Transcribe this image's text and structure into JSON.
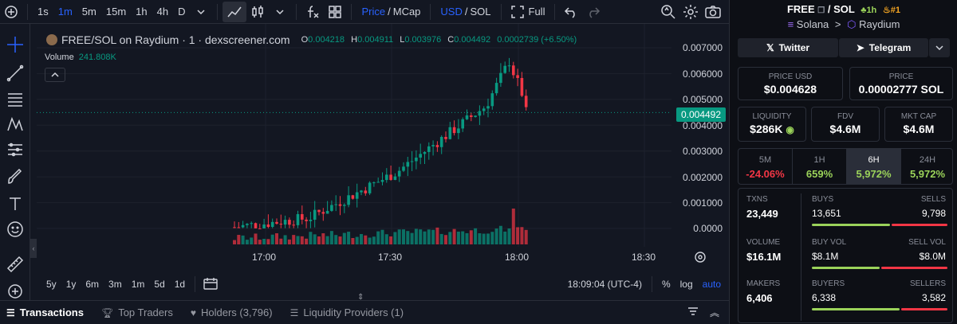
{
  "toolbar": {
    "add_icon": "plus-circle-icon",
    "intervals": [
      "1s",
      "1m",
      "5m",
      "15m",
      "1h",
      "4h",
      "D"
    ],
    "active_interval": "1m",
    "price_label": "Price",
    "mcap_label": "MCap",
    "usd_label": "USD",
    "sol_label": "SOL",
    "full_label": "Full",
    "slash": "/"
  },
  "chart": {
    "title": "FREE/SOL on Raydium · 1 · dexscreener.com",
    "ohlc": {
      "o_label": "O",
      "o": "0.004218",
      "h_label": "H",
      "h": "0.004911",
      "l_label": "L",
      "l": "0.003976",
      "c_label": "C",
      "c": "0.004492",
      "change": "0.0002739 (+6.50%)"
    },
    "volume_label": "Volume",
    "volume_value": "241.808K",
    "current_price_tag": "0.004492",
    "price_axis": [
      "0.007000",
      "0.006000",
      "0.005000",
      "0.004000",
      "0.003000",
      "0.002000",
      "0.001000",
      "0.0000"
    ],
    "time_axis": [
      "17:00",
      "17:30",
      "18:00",
      "18:30"
    ]
  },
  "bottom_toolbar": {
    "ranges": [
      "5y",
      "1y",
      "6m",
      "3m",
      "1m",
      "5d",
      "1d"
    ],
    "clock": "18:09:04 (UTC-4)",
    "percent": "%",
    "log": "log",
    "auto": "auto"
  },
  "tabs": [
    {
      "label": "Transactions",
      "icon": "list-icon"
    },
    {
      "label": "Top Traders",
      "icon": "trophy-icon"
    },
    {
      "label": "Holders (3,796)",
      "icon": "heart-icon"
    },
    {
      "label": "Liquidity Providers (1)",
      "icon": "list-icon"
    }
  ],
  "panel": {
    "token": "FREE",
    "quote": "SOL",
    "slash": "/",
    "age": "1h",
    "rank": "#1",
    "chain": "Solana",
    "dex": "Raydium",
    "separator": ">",
    "twitter": "Twitter",
    "telegram": "Telegram",
    "price_usd_label": "PRICE USD",
    "price_usd": "$0.004628",
    "price_label": "PRICE",
    "price_sol": "0.00002777 SOL",
    "liquidity_label": "LIQUIDITY",
    "liquidity": "$286K",
    "fdv_label": "FDV",
    "fdv": "$4.6M",
    "mcap_label": "MKT CAP",
    "mcap": "$4.6M",
    "periods": [
      {
        "label": "5M",
        "value": "-24.06%",
        "color": "#f23645"
      },
      {
        "label": "1H",
        "value": "659%",
        "color": "#9bd35a"
      },
      {
        "label": "6H",
        "value": "5,972%",
        "color": "#9bd35a"
      },
      {
        "label": "24H",
        "value": "5,972%",
        "color": "#9bd35a"
      }
    ],
    "selected_period": "6H",
    "txns_label": "TXNS",
    "txns": "23,449",
    "buys_label": "BUYS",
    "buys": "13,651",
    "sells_label": "SELLS",
    "sells": "9,798",
    "volume_label": "VOLUME",
    "volume": "$16.1M",
    "buy_vol_label": "BUY VOL",
    "buy_vol": "$8.1M",
    "sell_vol_label": "SELL VOL",
    "sell_vol": "$8.0M",
    "makers_label": "MAKERS",
    "makers": "6,406",
    "buyers_label": "BUYERS",
    "buyers": "6,338",
    "sellers_label": "SELLERS",
    "sellers": "3,582",
    "buy_color": "#9bd35a",
    "sell_color": "#f23645"
  },
  "colors": {
    "up": "#089981",
    "down": "#f23645",
    "accent": "#2962ff",
    "background": "#131722"
  }
}
